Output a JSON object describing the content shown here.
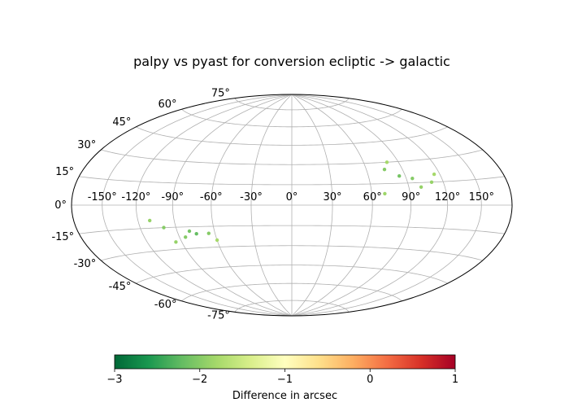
{
  "chart_data": {
    "type": "scatter",
    "projection": "hammer-aitoff",
    "title": "palpy vs pyast for conversion ecliptic -> galactic",
    "grid": true,
    "lon_ticks": [
      "-150°",
      "-120°",
      "-90°",
      "-60°",
      "-30°",
      "0°",
      "30°",
      "60°",
      "90°",
      "120°",
      "150°"
    ],
    "lat_ticks": [
      "-75°",
      "-60°",
      "-45°",
      "-30°",
      "-15°",
      "0°",
      "15°",
      "30°",
      "45°",
      "60°",
      "75°"
    ],
    "lon_tick_values": [
      -150,
      -120,
      -90,
      -60,
      -30,
      0,
      30,
      60,
      90,
      120,
      150
    ],
    "lat_tick_values": [
      -75,
      -60,
      -45,
      -30,
      -15,
      0,
      15,
      30,
      45,
      60,
      75
    ],
    "colorbar": {
      "label": "Difference in arcsec",
      "range": [
        -3,
        1
      ],
      "ticks": [
        "−3",
        "−2",
        "−1",
        "0",
        "1"
      ],
      "tick_values": [
        -3,
        -2,
        -1,
        0,
        1
      ],
      "colormap": "RdYlGn_r",
      "colors": [
        "#006837",
        "#1a9850",
        "#66bd63",
        "#a6d96a",
        "#d9ef8b",
        "#ffffbf",
        "#fee08b",
        "#fdae61",
        "#f46d43",
        "#d73027",
        "#a50026"
      ]
    },
    "points": [
      {
        "lon": 85,
        "lat": 20,
        "value": -2.1
      },
      {
        "lon": 95,
        "lat": 18,
        "value": -2.0
      },
      {
        "lon": 110,
        "lat": 15,
        "value": -1.9
      },
      {
        "lon": 75,
        "lat": 25,
        "value": -2.0
      },
      {
        "lon": 100,
        "lat": 12,
        "value": -1.9
      },
      {
        "lon": 70,
        "lat": 8,
        "value": -1.85
      },
      {
        "lon": 115,
        "lat": 20,
        "value": -1.8
      },
      {
        "lon": 80,
        "lat": 30,
        "value": -1.8
      },
      {
        "lon": -100,
        "lat": -15,
        "value": -2.0
      },
      {
        "lon": -80,
        "lat": -18,
        "value": -2.1
      },
      {
        "lon": -75,
        "lat": -20,
        "value": -2.2
      },
      {
        "lon": -65,
        "lat": -20,
        "value": -2.0
      },
      {
        "lon": -110,
        "lat": -10,
        "value": -1.9
      },
      {
        "lon": -95,
        "lat": -25,
        "value": -1.9
      },
      {
        "lon": -85,
        "lat": -22,
        "value": -2.0
      },
      {
        "lon": -60,
        "lat": -25,
        "value": -1.8
      }
    ]
  }
}
